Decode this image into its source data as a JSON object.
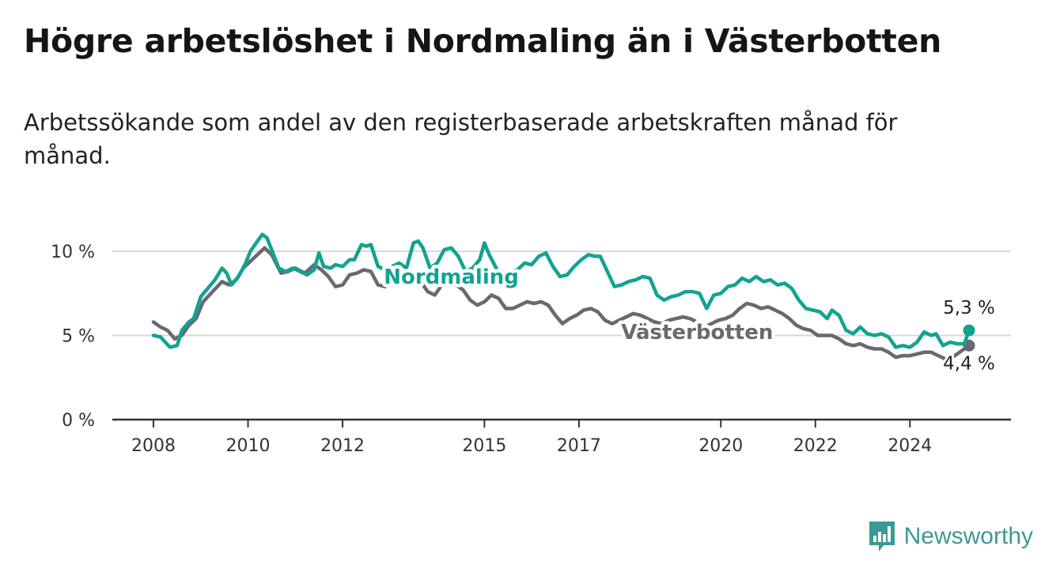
{
  "title": "Högre arbetslöshet i Nordmaling än i Västerbotten",
  "subtitle": "Arbetssökande som andel av den registerbaserade arbetskraften månad för månad.",
  "brand": {
    "name": "Newsworthy",
    "color": "#3a9a95",
    "icon": "newsworthy-logo-icon"
  },
  "chart_data": {
    "type": "line",
    "title": "Högre arbetslöshet i Nordmaling än i Västerbotten",
    "xlim": [
      2008,
      2025.8
    ],
    "ylim": [
      0,
      10
    ],
    "yticks": [
      {
        "value": 0,
        "label": "0 %"
      },
      {
        "value": 5,
        "label": "5 %"
      },
      {
        "value": 10,
        "label": "10 %"
      }
    ],
    "xticks": [
      {
        "value": 2008,
        "label": "2008"
      },
      {
        "value": 2010,
        "label": "2010"
      },
      {
        "value": 2012,
        "label": "2012"
      },
      {
        "value": 2015,
        "label": "2015"
      },
      {
        "value": 2017,
        "label": "2017"
      },
      {
        "value": 2020,
        "label": "2020"
      },
      {
        "value": 2022,
        "label": "2022"
      },
      {
        "value": 2024,
        "label": "2024"
      }
    ],
    "grid": "horizontal",
    "legend": "inline labels",
    "series": [
      {
        "name": "Nordmaling",
        "color": "#11a391",
        "end_label": "5,3 %",
        "points": [
          [
            2008.0,
            5.0
          ],
          [
            2008.15,
            4.9
          ],
          [
            2008.25,
            4.6
          ],
          [
            2008.35,
            4.3
          ],
          [
            2008.5,
            4.4
          ],
          [
            2008.6,
            5.3
          ],
          [
            2008.75,
            5.8
          ],
          [
            2008.85,
            6.0
          ],
          [
            2009.0,
            7.3
          ],
          [
            2009.15,
            7.8
          ],
          [
            2009.3,
            8.3
          ],
          [
            2009.45,
            9.0
          ],
          [
            2009.55,
            8.7
          ],
          [
            2009.65,
            8.0
          ],
          [
            2009.8,
            8.5
          ],
          [
            2009.95,
            9.3
          ],
          [
            2010.05,
            10.0
          ],
          [
            2010.2,
            10.6
          ],
          [
            2010.3,
            11.0
          ],
          [
            2010.4,
            10.8
          ],
          [
            2010.5,
            10.1
          ],
          [
            2010.65,
            9.0
          ],
          [
            2010.8,
            8.8
          ],
          [
            2010.95,
            9.0
          ],
          [
            2011.1,
            8.8
          ],
          [
            2011.25,
            8.6
          ],
          [
            2011.4,
            8.9
          ],
          [
            2011.5,
            9.9
          ],
          [
            2011.6,
            9.1
          ],
          [
            2011.75,
            9.0
          ],
          [
            2011.85,
            9.2
          ],
          [
            2012.0,
            9.1
          ],
          [
            2012.15,
            9.5
          ],
          [
            2012.25,
            9.5
          ],
          [
            2012.4,
            10.4
          ],
          [
            2012.5,
            10.3
          ],
          [
            2012.6,
            10.4
          ],
          [
            2012.75,
            9.1
          ],
          [
            2012.9,
            8.9
          ],
          [
            2013.05,
            9.1
          ],
          [
            2013.2,
            9.3
          ],
          [
            2013.35,
            9.0
          ],
          [
            2013.5,
            10.5
          ],
          [
            2013.6,
            10.6
          ],
          [
            2013.7,
            10.2
          ],
          [
            2013.85,
            9.0
          ],
          [
            2014.0,
            9.3
          ],
          [
            2014.15,
            10.1
          ],
          [
            2014.3,
            10.2
          ],
          [
            2014.45,
            9.7
          ],
          [
            2014.6,
            8.8
          ],
          [
            2014.75,
            9.0
          ],
          [
            2014.9,
            9.5
          ],
          [
            2015.0,
            10.5
          ],
          [
            2015.1,
            9.8
          ],
          [
            2015.25,
            9.0
          ],
          [
            2015.4,
            8.2
          ],
          [
            2015.55,
            8.8
          ],
          [
            2015.7,
            8.9
          ],
          [
            2015.85,
            9.3
          ],
          [
            2016.0,
            9.2
          ],
          [
            2016.15,
            9.7
          ],
          [
            2016.3,
            9.9
          ],
          [
            2016.45,
            9.1
          ],
          [
            2016.6,
            8.5
          ],
          [
            2016.75,
            8.6
          ],
          [
            2016.9,
            9.1
          ],
          [
            2017.05,
            9.5
          ],
          [
            2017.2,
            9.8
          ],
          [
            2017.35,
            9.7
          ],
          [
            2017.45,
            9.7
          ],
          [
            2017.6,
            8.8
          ],
          [
            2017.75,
            7.9
          ],
          [
            2017.9,
            8.0
          ],
          [
            2018.05,
            8.2
          ],
          [
            2018.2,
            8.3
          ],
          [
            2018.35,
            8.5
          ],
          [
            2018.5,
            8.4
          ],
          [
            2018.65,
            7.4
          ],
          [
            2018.8,
            7.1
          ],
          [
            2018.95,
            7.3
          ],
          [
            2019.1,
            7.4
          ],
          [
            2019.25,
            7.6
          ],
          [
            2019.4,
            7.6
          ],
          [
            2019.55,
            7.5
          ],
          [
            2019.7,
            6.6
          ],
          [
            2019.85,
            7.4
          ],
          [
            2020.0,
            7.5
          ],
          [
            2020.15,
            7.9
          ],
          [
            2020.3,
            8.0
          ],
          [
            2020.45,
            8.4
          ],
          [
            2020.6,
            8.2
          ],
          [
            2020.75,
            8.5
          ],
          [
            2020.9,
            8.2
          ],
          [
            2021.05,
            8.3
          ],
          [
            2021.2,
            8.0
          ],
          [
            2021.35,
            8.1
          ],
          [
            2021.5,
            7.8
          ],
          [
            2021.65,
            7.1
          ],
          [
            2021.8,
            6.6
          ],
          [
            2021.95,
            6.5
          ],
          [
            2022.1,
            6.4
          ],
          [
            2022.25,
            6.0
          ],
          [
            2022.35,
            6.5
          ],
          [
            2022.5,
            6.2
          ],
          [
            2022.65,
            5.3
          ],
          [
            2022.8,
            5.1
          ],
          [
            2022.95,
            5.5
          ],
          [
            2023.1,
            5.1
          ],
          [
            2023.25,
            5.0
          ],
          [
            2023.4,
            5.1
          ],
          [
            2023.55,
            4.9
          ],
          [
            2023.7,
            4.3
          ],
          [
            2023.85,
            4.4
          ],
          [
            2024.0,
            4.3
          ],
          [
            2024.15,
            4.6
          ],
          [
            2024.3,
            5.2
          ],
          [
            2024.45,
            5.0
          ],
          [
            2024.55,
            5.1
          ],
          [
            2024.7,
            4.4
          ],
          [
            2024.85,
            4.6
          ],
          [
            2025.0,
            4.5
          ],
          [
            2025.15,
            4.5
          ],
          [
            2025.25,
            5.3
          ]
        ]
      },
      {
        "name": "Västerbotten",
        "color": "#6a6870",
        "end_label": "4,4 %",
        "points": [
          [
            2008.0,
            5.8
          ],
          [
            2008.15,
            5.5
          ],
          [
            2008.3,
            5.3
          ],
          [
            2008.45,
            4.8
          ],
          [
            2008.6,
            5.0
          ],
          [
            2008.75,
            5.6
          ],
          [
            2008.9,
            6.0
          ],
          [
            2009.05,
            7.0
          ],
          [
            2009.25,
            7.6
          ],
          [
            2009.45,
            8.2
          ],
          [
            2009.6,
            8.0
          ],
          [
            2009.75,
            8.3
          ],
          [
            2009.9,
            9.0
          ],
          [
            2010.05,
            9.4
          ],
          [
            2010.2,
            9.8
          ],
          [
            2010.35,
            10.2
          ],
          [
            2010.5,
            9.8
          ],
          [
            2010.7,
            8.7
          ],
          [
            2010.85,
            8.8
          ],
          [
            2011.0,
            9.0
          ],
          [
            2011.2,
            8.7
          ],
          [
            2011.4,
            9.2
          ],
          [
            2011.55,
            8.9
          ],
          [
            2011.7,
            8.5
          ],
          [
            2011.85,
            7.9
          ],
          [
            2012.0,
            8.0
          ],
          [
            2012.15,
            8.6
          ],
          [
            2012.3,
            8.7
          ],
          [
            2012.45,
            8.9
          ],
          [
            2012.6,
            8.8
          ],
          [
            2012.75,
            8.0
          ],
          [
            2012.9,
            7.9
          ],
          [
            2013.05,
            8.3
          ],
          [
            2013.2,
            8.5
          ],
          [
            2013.35,
            8.6
          ],
          [
            2013.5,
            8.5
          ],
          [
            2013.65,
            8.2
          ],
          [
            2013.8,
            7.6
          ],
          [
            2013.95,
            7.4
          ],
          [
            2014.1,
            8.0
          ],
          [
            2014.25,
            8.1
          ],
          [
            2014.4,
            8.0
          ],
          [
            2014.55,
            7.7
          ],
          [
            2014.7,
            7.1
          ],
          [
            2014.85,
            6.8
          ],
          [
            2015.0,
            7.0
          ],
          [
            2015.15,
            7.4
          ],
          [
            2015.3,
            7.2
          ],
          [
            2015.45,
            6.6
          ],
          [
            2015.6,
            6.6
          ],
          [
            2015.75,
            6.8
          ],
          [
            2015.9,
            7.0
          ],
          [
            2016.05,
            6.9
          ],
          [
            2016.2,
            7.0
          ],
          [
            2016.35,
            6.8
          ],
          [
            2016.5,
            6.2
          ],
          [
            2016.65,
            5.7
          ],
          [
            2016.8,
            6.0
          ],
          [
            2016.95,
            6.2
          ],
          [
            2017.1,
            6.5
          ],
          [
            2017.25,
            6.6
          ],
          [
            2017.4,
            6.4
          ],
          [
            2017.55,
            5.9
          ],
          [
            2017.7,
            5.7
          ],
          [
            2017.85,
            5.9
          ],
          [
            2018.0,
            6.1
          ],
          [
            2018.15,
            6.3
          ],
          [
            2018.3,
            6.2
          ],
          [
            2018.45,
            6.0
          ],
          [
            2018.6,
            5.8
          ],
          [
            2018.75,
            5.7
          ],
          [
            2018.9,
            5.9
          ],
          [
            2019.05,
            6.0
          ],
          [
            2019.2,
            6.1
          ],
          [
            2019.35,
            6.0
          ],
          [
            2019.5,
            5.8
          ],
          [
            2019.65,
            5.5
          ],
          [
            2019.8,
            5.7
          ],
          [
            2019.95,
            5.9
          ],
          [
            2020.1,
            6.0
          ],
          [
            2020.25,
            6.2
          ],
          [
            2020.4,
            6.6
          ],
          [
            2020.55,
            6.9
          ],
          [
            2020.7,
            6.8
          ],
          [
            2020.85,
            6.6
          ],
          [
            2021.0,
            6.7
          ],
          [
            2021.15,
            6.5
          ],
          [
            2021.3,
            6.3
          ],
          [
            2021.45,
            6.0
          ],
          [
            2021.6,
            5.6
          ],
          [
            2021.75,
            5.4
          ],
          [
            2021.9,
            5.3
          ],
          [
            2022.05,
            5.0
          ],
          [
            2022.2,
            5.0
          ],
          [
            2022.35,
            5.0
          ],
          [
            2022.5,
            4.8
          ],
          [
            2022.65,
            4.5
          ],
          [
            2022.8,
            4.4
          ],
          [
            2022.95,
            4.5
          ],
          [
            2023.1,
            4.3
          ],
          [
            2023.25,
            4.2
          ],
          [
            2023.4,
            4.2
          ],
          [
            2023.55,
            4.0
          ],
          [
            2023.7,
            3.7
          ],
          [
            2023.85,
            3.8
          ],
          [
            2024.0,
            3.8
          ],
          [
            2024.15,
            3.9
          ],
          [
            2024.3,
            4.0
          ],
          [
            2024.45,
            4.0
          ],
          [
            2024.6,
            3.8
          ],
          [
            2024.75,
            3.6
          ],
          [
            2024.9,
            3.7
          ],
          [
            2025.05,
            4.0
          ],
          [
            2025.25,
            4.4
          ]
        ]
      }
    ]
  }
}
